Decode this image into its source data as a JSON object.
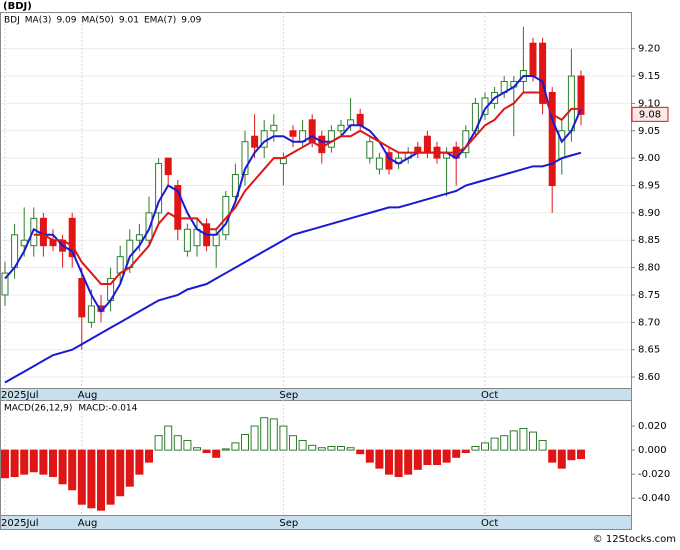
{
  "chart_data": [
    {
      "type": "candlestick",
      "title": "(BDJ)",
      "categories": [
        null,
        null,
        null,
        null,
        null,
        null,
        null,
        null,
        null,
        null,
        null,
        null,
        null,
        null,
        null,
        null,
        null,
        null,
        null,
        null,
        null,
        null,
        null,
        null,
        null,
        null,
        null,
        null,
        null,
        null,
        null,
        null,
        null,
        null,
        null,
        null,
        null,
        null,
        null,
        null,
        null,
        null,
        null,
        null,
        null,
        null,
        null,
        null,
        null,
        null,
        null,
        null,
        null,
        null,
        null,
        null,
        null,
        null,
        null,
        null,
        null
      ],
      "xticks": [
        {
          "value": 0,
          "label": "2025Jul"
        },
        {
          "value": 8,
          "label": "Aug"
        },
        {
          "value": 29,
          "label": "Sep"
        },
        {
          "value": 50,
          "label": "Oct"
        }
      ],
      "ylim": [
        8.58,
        9.267
      ],
      "yticks": [
        {
          "value": 8.6,
          "label": "8.60"
        },
        {
          "value": 8.65,
          "label": "8.65"
        },
        {
          "value": 8.7,
          "label": "8.70"
        },
        {
          "value": 8.75,
          "label": "8.75"
        },
        {
          "value": 8.8,
          "label": "8.80"
        },
        {
          "value": 8.85,
          "label": "8.85"
        },
        {
          "value": 8.9,
          "label": "8.90"
        },
        {
          "value": 8.95,
          "label": "8.95"
        },
        {
          "value": 9.0,
          "label": "9.00"
        },
        {
          "value": 9.05,
          "label": "9.05"
        },
        {
          "value": 9.1,
          "label": "9.10"
        },
        {
          "value": 9.15,
          "label": "9.15"
        },
        {
          "value": 9.2,
          "label": "9.20"
        }
      ],
      "grid": true,
      "candles": {
        "name": "BDJ",
        "up_color": "#2e7d2e",
        "down_color": "#e01515",
        "open": [
          8.75,
          8.8,
          8.84,
          8.84,
          8.89,
          8.85,
          8.85,
          8.89,
          8.78,
          8.7,
          8.73,
          8.74,
          8.79,
          8.8,
          8.85,
          8.85,
          8.9,
          9.0,
          8.95,
          8.83,
          8.84,
          8.88,
          8.84,
          8.86,
          8.93,
          8.97,
          9.04,
          9.02,
          9.05,
          8.99,
          9.05,
          9.03,
          9.07,
          9.04,
          9.02,
          9.05,
          9.06,
          9.08,
          9.0,
          8.98,
          9.01,
          8.99,
          9.0,
          9.02,
          9.04,
          9.02,
          9.0,
          9.02,
          9.01,
          9.05,
          9.08,
          9.1,
          9.12,
          9.13,
          9.14,
          9.21,
          9.21,
          9.12,
          9.0,
          9.05,
          9.15
        ],
        "high": [
          8.81,
          8.88,
          8.91,
          8.91,
          8.9,
          8.87,
          8.86,
          8.9,
          8.8,
          8.76,
          8.75,
          8.8,
          8.84,
          8.87,
          8.88,
          8.93,
          9.0,
          9.0,
          8.96,
          8.88,
          8.89,
          8.89,
          8.87,
          8.94,
          8.99,
          9.05,
          9.08,
          9.07,
          9.08,
          9.01,
          9.06,
          9.07,
          9.08,
          9.05,
          9.06,
          9.07,
          9.11,
          9.09,
          9.04,
          9.01,
          9.02,
          9.01,
          9.02,
          9.03,
          9.05,
          9.03,
          9.02,
          9.03,
          9.06,
          9.11,
          9.12,
          9.13,
          9.15,
          9.15,
          9.24,
          9.22,
          9.22,
          9.13,
          9.07,
          9.2,
          9.16
        ],
        "low": [
          8.73,
          8.78,
          8.82,
          8.82,
          8.82,
          8.83,
          8.8,
          8.8,
          8.65,
          8.69,
          8.7,
          8.72,
          8.77,
          8.79,
          8.83,
          8.84,
          8.88,
          8.95,
          8.85,
          8.82,
          8.82,
          8.83,
          8.8,
          8.85,
          8.92,
          8.95,
          9.0,
          9.0,
          9.03,
          8.95,
          9.02,
          9.02,
          9.02,
          8.99,
          9.01,
          9.04,
          9.05,
          9.05,
          8.99,
          8.97,
          8.97,
          8.98,
          8.99,
          9.0,
          9.0,
          8.99,
          8.93,
          8.95,
          9.0,
          9.04,
          9.07,
          9.09,
          9.11,
          9.04,
          9.12,
          9.14,
          9.08,
          8.9,
          8.97,
          9.03,
          9.06
        ],
        "close": [
          8.79,
          8.86,
          8.85,
          8.89,
          8.84,
          8.84,
          8.83,
          8.82,
          8.71,
          8.73,
          8.72,
          8.78,
          8.82,
          8.85,
          8.86,
          8.9,
          8.99,
          8.97,
          8.87,
          8.87,
          8.87,
          8.84,
          8.86,
          8.93,
          8.97,
          9.03,
          9.02,
          9.05,
          9.06,
          9.0,
          9.04,
          9.05,
          9.03,
          9.01,
          9.05,
          9.06,
          9.07,
          9.06,
          9.03,
          9.0,
          8.98,
          9.0,
          9.01,
          9.01,
          9.01,
          9.0,
          9.01,
          9.0,
          9.05,
          9.1,
          9.11,
          9.12,
          9.14,
          9.14,
          9.16,
          9.15,
          9.1,
          8.95,
          9.05,
          9.15,
          9.08
        ],
        "last_label": "9.08"
      },
      "series": [
        {
          "name": "MA(3)",
          "color": "#1a1ad6",
          "last_label": "9.09",
          "values": [
            8.78,
            8.8,
            8.83,
            8.87,
            8.86,
            8.86,
            8.84,
            8.83,
            8.79,
            8.75,
            8.72,
            8.74,
            8.77,
            8.82,
            8.84,
            8.87,
            8.92,
            8.95,
            8.94,
            8.9,
            8.87,
            8.86,
            8.86,
            8.88,
            8.92,
            8.98,
            9.01,
            9.03,
            9.04,
            9.04,
            9.03,
            9.03,
            9.04,
            9.03,
            9.03,
            9.04,
            9.06,
            9.06,
            9.05,
            9.03,
            9.0,
            8.99,
            9.0,
            9.01,
            9.01,
            9.01,
            9.01,
            9.0,
            9.02,
            9.05,
            9.09,
            9.11,
            9.12,
            9.13,
            9.15,
            9.15,
            9.14,
            9.07,
            9.03,
            9.05,
            9.09
          ]
        },
        {
          "name": "MA(50)",
          "color": "#1a1ad6",
          "last_label": "9.01",
          "values": [
            8.59,
            8.6,
            8.61,
            8.62,
            8.63,
            8.64,
            8.645,
            8.65,
            8.66,
            8.67,
            8.68,
            8.69,
            8.7,
            8.71,
            8.72,
            8.73,
            8.74,
            8.745,
            8.75,
            8.76,
            8.765,
            8.77,
            8.78,
            8.79,
            8.8,
            8.81,
            8.82,
            8.83,
            8.84,
            8.85,
            8.86,
            8.865,
            8.87,
            8.875,
            8.88,
            8.885,
            8.89,
            8.895,
            8.9,
            8.905,
            8.91,
            8.91,
            8.915,
            8.92,
            8.925,
            8.93,
            8.935,
            8.94,
            8.95,
            8.955,
            8.96,
            8.965,
            8.97,
            8.975,
            8.98,
            8.985,
            8.985,
            8.99,
            9.0,
            9.005,
            9.01
          ]
        },
        {
          "name": "EMA(7)",
          "color": "#e01515",
          "last_label": "9.09",
          "values": [
            null,
            null,
            null,
            8.86,
            8.86,
            8.85,
            8.85,
            8.84,
            8.81,
            8.79,
            8.77,
            8.77,
            8.79,
            8.8,
            8.82,
            8.84,
            8.88,
            8.9,
            8.89,
            8.89,
            8.89,
            8.87,
            8.87,
            8.89,
            8.91,
            8.94,
            8.96,
            8.98,
            9.0,
            9.0,
            9.01,
            9.02,
            9.03,
            9.02,
            9.03,
            9.04,
            9.04,
            9.05,
            9.04,
            9.03,
            9.02,
            9.01,
            9.01,
            9.01,
            9.01,
            9.01,
            9.01,
            9.01,
            9.02,
            9.04,
            9.06,
            9.07,
            9.09,
            9.1,
            9.12,
            9.12,
            9.12,
            9.08,
            9.07,
            9.09,
            9.09
          ]
        }
      ]
    },
    {
      "type": "bar",
      "title": "MACD(26,12,9)",
      "macd_label": "MACD:-0.014",
      "xticks": [
        {
          "value": 0,
          "label": "2025Jul"
        },
        {
          "value": 8,
          "label": "Aug"
        },
        {
          "value": 29,
          "label": "Sep"
        },
        {
          "value": 50,
          "label": "Oct"
        }
      ],
      "ylim": [
        -0.054,
        0.0417
      ],
      "yticks": [
        {
          "value": 0.02,
          "label": "0.020"
        },
        {
          "value": 0,
          "label": "0.000"
        },
        {
          "value": -0.02,
          "label": "-0.020"
        },
        {
          "value": -0.04,
          "label": "-0.040"
        }
      ],
      "up_color": "#2e7d2e",
      "down_color": "#e01515",
      "values": [
        -0.023,
        -0.022,
        -0.02,
        -0.018,
        -0.02,
        -0.022,
        -0.028,
        -0.033,
        -0.045,
        -0.048,
        -0.05,
        -0.045,
        -0.038,
        -0.03,
        -0.02,
        -0.01,
        0.012,
        0.02,
        0.012,
        0.008,
        0.002,
        -0.002,
        -0.006,
        0.001,
        0.006,
        0.013,
        0.02,
        0.027,
        0.026,
        0.02,
        0.012,
        0.008,
        0.004,
        0.002,
        0.003,
        0.003,
        0.002,
        -0.003,
        -0.01,
        -0.015,
        -0.02,
        -0.022,
        -0.02,
        -0.016,
        -0.012,
        -0.012,
        -0.01,
        -0.006,
        -0.002,
        0.003,
        0.006,
        0.01,
        0.012,
        0.016,
        0.018,
        0.015,
        0.008,
        -0.01,
        -0.015,
        -0.008,
        -0.007
      ]
    }
  ],
  "footer": "© 12Stocks.com"
}
